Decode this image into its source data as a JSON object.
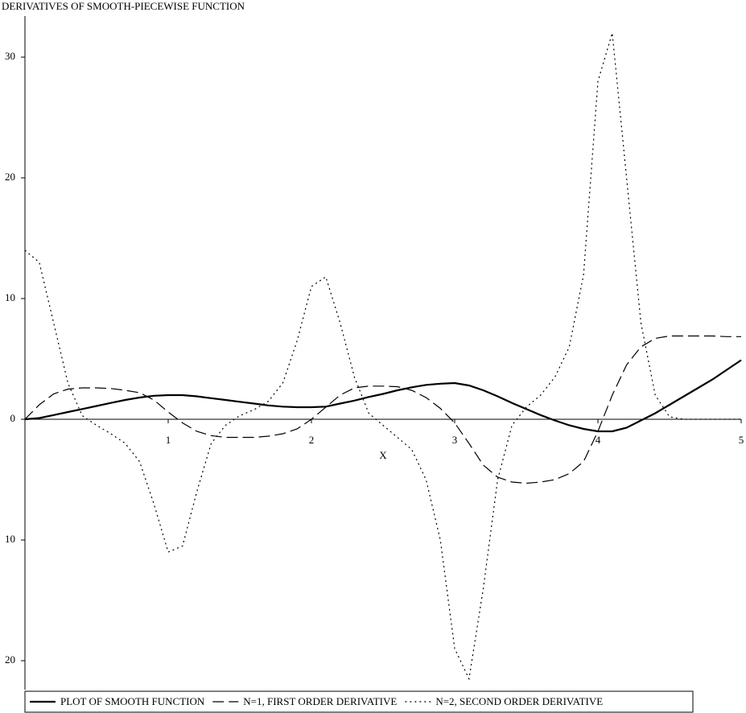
{
  "chart_data": {
    "type": "line",
    "title": "DERIVATIVES OF SMOOTH-PIECEWISE FUNCTION",
    "x_label": "X",
    "x": [
      0,
      0.1,
      0.2,
      0.3,
      0.4,
      0.5,
      0.6,
      0.7,
      0.8,
      0.9,
      1,
      1.1,
      1.2,
      1.3,
      1.4,
      1.5,
      1.6,
      1.7,
      1.8,
      1.9,
      2,
      2.1,
      2.2,
      2.3,
      2.4,
      2.5,
      2.6,
      2.7,
      2.8,
      2.9,
      3,
      3.1,
      3.2,
      3.3,
      3.4,
      3.5,
      3.6,
      3.7,
      3.8,
      3.9,
      4,
      4.1,
      4.2,
      4.3,
      4.4,
      4.5,
      4.6,
      4.7,
      4.8,
      4.9,
      5
    ],
    "series": [
      {
        "name": "PLOT OF SMOOTH FUNCTION",
        "color": "#000000",
        "dash": "solid",
        "values": [
          0,
          0.1,
          0.35,
          0.6,
          0.85,
          1.1,
          1.35,
          1.6,
          1.8,
          1.95,
          2,
          2,
          1.9,
          1.75,
          1.6,
          1.45,
          1.3,
          1.15,
          1.05,
          1,
          1,
          1.05,
          1.3,
          1.55,
          1.85,
          2.1,
          2.4,
          2.65,
          2.85,
          2.95,
          3,
          2.8,
          2.4,
          1.9,
          1.35,
          0.85,
          0.35,
          -0.1,
          -0.5,
          -0.8,
          -1,
          -1,
          -0.7,
          -0.1,
          0.5,
          1.2,
          1.9,
          2.6,
          3.3,
          4.1,
          4.9
        ]
      },
      {
        "name": "N=1, FIRST ORDER DERIVATIVE",
        "color": "#000000",
        "dash": "dash",
        "values": [
          0,
          1.2,
          2.1,
          2.5,
          2.6,
          2.6,
          2.55,
          2.4,
          2.2,
          1.6,
          0.6,
          -0.3,
          -1,
          -1.35,
          -1.5,
          -1.5,
          -1.5,
          -1.4,
          -1.2,
          -0.8,
          0,
          1,
          2,
          2.6,
          2.75,
          2.75,
          2.7,
          2.4,
          1.8,
          0.9,
          -0.3,
          -2,
          -3.8,
          -4.8,
          -5.2,
          -5.3,
          -5.2,
          -5,
          -4.5,
          -3.5,
          -1,
          2,
          4.5,
          6,
          6.7,
          6.9,
          6.9,
          6.9,
          6.9,
          6.85,
          6.85
        ]
      },
      {
        "name": "N=2, SECOND ORDER DERIVATIVE",
        "color": "#000000",
        "dash": "dot",
        "values": [
          14,
          13,
          8,
          3,
          0.3,
          -0.5,
          -1.2,
          -2,
          -3.5,
          -7,
          -11,
          -10.5,
          -6,
          -2,
          -0.5,
          0.3,
          0.8,
          1.5,
          3,
          6.5,
          11,
          11.8,
          8,
          3.5,
          0.5,
          -0.5,
          -1.5,
          -2.5,
          -5,
          -10,
          -19,
          -21.5,
          -14,
          -5,
          -0.5,
          1,
          2,
          3.5,
          6,
          12,
          28,
          32,
          20,
          8,
          2,
          0.2,
          0,
          0,
          0,
          0,
          0
        ]
      }
    ],
    "xlim": [
      0,
      5
    ],
    "ylim": [
      -22.4,
      33.4
    ],
    "xticks": [
      1,
      2,
      3,
      4,
      5
    ],
    "yticks": [
      {
        "value": -20,
        "label": "20"
      },
      {
        "value": -10,
        "label": "10"
      },
      0,
      10,
      20,
      30
    ],
    "legend": "bottom"
  }
}
